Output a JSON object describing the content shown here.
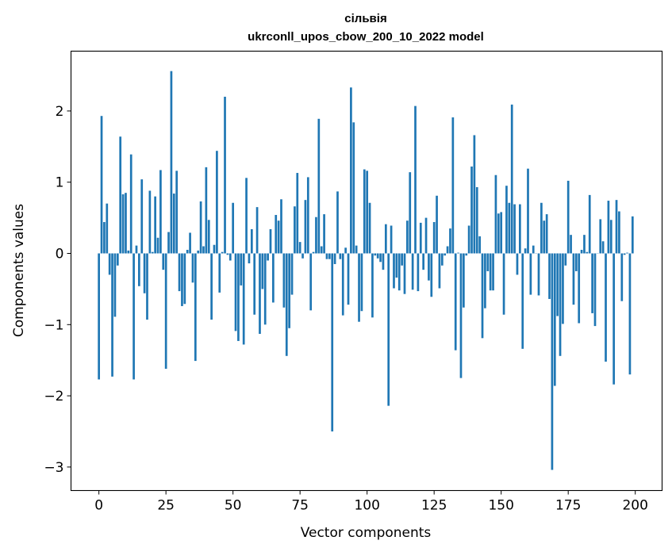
{
  "chart_data": {
    "type": "bar",
    "title_line1": "сільвія",
    "title_line2": "ukrconll_upos_cbow_200_10_2022 model",
    "xlabel": "Vector components",
    "ylabel": "Components values",
    "xlim": [
      -10.4,
      210
    ],
    "ylim": [
      -3.33,
      2.84
    ],
    "xticks": [
      0,
      25,
      50,
      75,
      100,
      125,
      150,
      175,
      200
    ],
    "yticks": [
      -3,
      -2,
      -1,
      0,
      1,
      2
    ],
    "xtick_labels": [
      "0",
      "25",
      "50",
      "75",
      "100",
      "125",
      "150",
      "175",
      "200"
    ],
    "ytick_labels": [
      "−3",
      "−2",
      "−1",
      "0",
      "1",
      "2"
    ],
    "grid": false,
    "color": "#1f77b4",
    "values": [
      -1.77,
      1.93,
      0.44,
      0.7,
      -0.3,
      -1.73,
      -0.89,
      -0.17,
      1.64,
      0.83,
      0.85,
      0.04,
      1.39,
      -1.77,
      0.11,
      -0.46,
      1.04,
      -0.56,
      -0.93,
      0.88,
      0.02,
      0.8,
      0.22,
      1.17,
      -0.23,
      -1.62,
      0.3,
      2.56,
      0.84,
      1.16,
      -0.53,
      -0.74,
      -0.71,
      0.05,
      0.29,
      -0.41,
      -1.51,
      0.04,
      0.73,
      0.1,
      1.21,
      0.47,
      -0.93,
      0.12,
      1.44,
      -0.55,
      0.02,
      2.2,
      -0.02,
      -0.1,
      0.71,
      -1.09,
      -1.23,
      -0.45,
      -1.28,
      1.06,
      -0.14,
      0.34,
      -0.86,
      0.65,
      -1.13,
      -0.5,
      -1.0,
      -0.1,
      0.34,
      -0.69,
      0.54,
      0.46,
      0.76,
      -0.76,
      -1.44,
      -1.05,
      -0.58,
      0.66,
      1.13,
      0.16,
      -0.07,
      0.75,
      1.07,
      -0.8,
      0.02,
      0.51,
      1.89,
      0.1,
      0.55,
      -0.08,
      -0.08,
      -2.5,
      -0.15,
      0.87,
      -0.08,
      -0.87,
      0.08,
      -0.72,
      2.33,
      1.84,
      0.11,
      -0.96,
      -0.81,
      1.18,
      1.16,
      0.71,
      -0.9,
      -0.03,
      -0.07,
      -0.12,
      -0.23,
      0.41,
      -2.14,
      0.39,
      -0.49,
      -0.34,
      -0.52,
      -0.17,
      -0.57,
      0.46,
      1.14,
      -0.51,
      2.07,
      -0.53,
      0.43,
      -0.23,
      0.5,
      -0.38,
      -0.61,
      0.44,
      0.81,
      -0.49,
      -0.17,
      -0.03,
      0.1,
      0.35,
      1.91,
      -1.36,
      0.01,
      -1.75,
      -0.76,
      -0.03,
      0.39,
      1.22,
      1.66,
      0.93,
      0.24,
      -1.19,
      -0.77,
      -0.25,
      -0.52,
      -0.52,
      1.1,
      0.56,
      0.58,
      -0.86,
      0.95,
      0.71,
      2.09,
      0.69,
      -0.3,
      0.69,
      -1.34,
      0.07,
      1.19,
      -0.58,
      0.11,
      0.0,
      -0.59,
      0.71,
      0.46,
      0.55,
      -0.64,
      -3.04,
      -1.86,
      -0.88,
      -1.44,
      -0.99,
      -0.17,
      1.02,
      0.26,
      -0.72,
      -0.25,
      -0.98,
      0.05,
      0.26,
      0.02,
      0.82,
      -0.84,
      -1.02,
      0.0,
      0.48,
      0.17,
      -1.52,
      0.74,
      0.47,
      -1.84,
      0.75,
      0.59,
      -0.67,
      -0.02,
      0.01,
      -1.7,
      0.52
    ]
  }
}
